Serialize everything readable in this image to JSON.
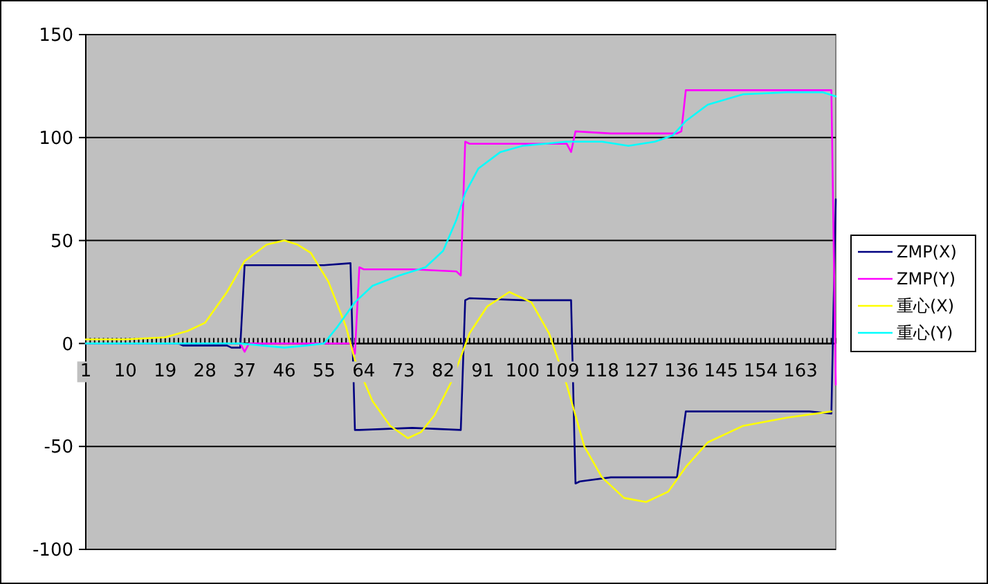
{
  "chart_data": {
    "type": "line",
    "xlim": [
      1,
      171
    ],
    "xticks": [
      {
        "value": 1,
        "label": "1"
      },
      10,
      19,
      28,
      37,
      46,
      55,
      64,
      73,
      82,
      91,
      100,
      109,
      118,
      127,
      136,
      145,
      154,
      163
    ],
    "ylim": [
      -100,
      150
    ],
    "yticks": [
      -100,
      -50,
      0,
      50,
      100,
      150
    ],
    "grid": "y",
    "legend": "right",
    "marker": "none",
    "series": [
      {
        "name": "ZMP(X)",
        "color": "#000080",
        "x": [
          1,
          22,
          23,
          33,
          34,
          36,
          37,
          45,
          55,
          61,
          62,
          63,
          75,
          86,
          87,
          88,
          100,
          111,
          112,
          113,
          120,
          130,
          135,
          137,
          150,
          165,
          170,
          171
        ],
        "values": [
          0,
          0,
          -1,
          -1,
          -2,
          -2,
          38,
          38,
          38,
          39,
          -42,
          -42,
          -41,
          -42,
          21,
          22,
          21,
          21,
          -68,
          -67,
          -65,
          -65,
          -65,
          -33,
          -33,
          -33,
          -34,
          70
        ]
      },
      {
        "name": "ZMP(Y)",
        "color": "#ff00ff",
        "x": [
          1,
          36,
          37,
          38,
          60,
          61,
          62,
          63,
          64,
          75,
          85,
          86,
          87,
          88,
          100,
          110,
          111,
          112,
          120,
          135,
          136,
          137,
          150,
          165,
          170,
          171
        ],
        "values": [
          0,
          0,
          -4,
          0,
          0,
          0,
          -5,
          37,
          36,
          36,
          35,
          33,
          98,
          97,
          97,
          97,
          93,
          103,
          102,
          102,
          103,
          123,
          123,
          123,
          123,
          -20
        ]
      },
      {
        "name": "重心(X)",
        "color": "#ffff00",
        "x": [
          1,
          10,
          19,
          24,
          28,
          33,
          37,
          42,
          46,
          49,
          52,
          56,
          60,
          62,
          66,
          70,
          74,
          77,
          80,
          84,
          88,
          92,
          97,
          102,
          106,
          110,
          114,
          118,
          123,
          128,
          133,
          137,
          142,
          150,
          160,
          170
        ],
        "values": [
          2,
          2,
          3,
          6,
          10,
          25,
          40,
          48,
          50,
          48,
          44,
          30,
          8,
          -8,
          -28,
          -40,
          -46,
          -43,
          -35,
          -18,
          5,
          18,
          25,
          20,
          5,
          -20,
          -50,
          -65,
          -75,
          -77,
          -72,
          -60,
          -48,
          -40,
          -36,
          -33
        ]
      },
      {
        "name": "重心(Y)",
        "color": "#00ffff",
        "x": [
          1,
          30,
          36,
          41,
          46,
          51,
          55,
          58,
          62,
          66,
          72,
          78,
          82,
          85,
          87,
          90,
          95,
          100,
          110,
          118,
          124,
          130,
          134,
          137,
          142,
          150,
          160,
          168,
          171
        ],
        "values": [
          0,
          0,
          0,
          -1,
          -2,
          -1,
          0,
          8,
          20,
          28,
          33,
          37,
          45,
          60,
          73,
          85,
          93,
          96,
          98,
          98,
          96,
          98,
          101,
          108,
          116,
          121,
          122,
          122,
          120
        ]
      }
    ]
  }
}
